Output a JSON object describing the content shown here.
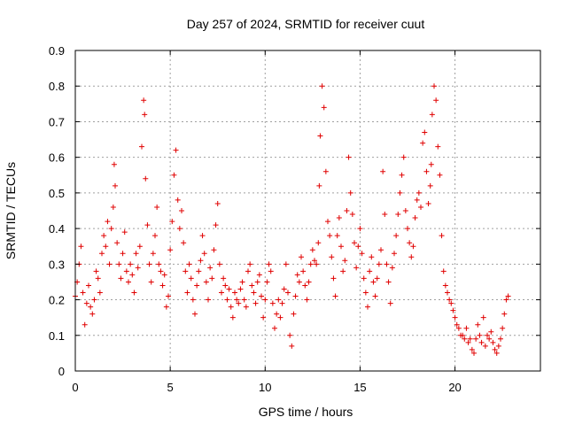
{
  "chart_data": {
    "type": "scatter",
    "title": "Day 257 of 2024, SRMTID for receiver cuut",
    "xlabel": "GPS time / hours",
    "ylabel": "SRMTID / TECUs",
    "xlim": [
      0,
      24.5
    ],
    "ylim": [
      0,
      0.9
    ],
    "xticks": [
      0,
      5,
      10,
      15,
      20
    ],
    "xtick_labels": [
      "0",
      "5",
      "10",
      "15",
      "20"
    ],
    "yticks": [
      0,
      0.1,
      0.2,
      0.3,
      0.4,
      0.5,
      0.6,
      0.7,
      0.8,
      0.9
    ],
    "ytick_labels": [
      "0",
      "0.1",
      "0.2",
      "0.3",
      "0.4",
      "0.5",
      "0.6",
      "0.7",
      "0.8",
      "0.9"
    ],
    "grid": true,
    "marker": "+",
    "color": "#e00000",
    "series": [
      {
        "name": "SRMTID",
        "x": [
          0.0,
          0.1,
          0.2,
          0.3,
          0.4,
          0.5,
          0.6,
          0.7,
          0.8,
          0.9,
          1.0,
          1.1,
          1.2,
          1.3,
          1.4,
          1.5,
          1.6,
          1.7,
          1.8,
          1.9,
          2.0,
          2.05,
          2.1,
          2.2,
          2.3,
          2.4,
          2.5,
          2.6,
          2.7,
          2.8,
          2.9,
          3.0,
          3.1,
          3.2,
          3.3,
          3.4,
          3.5,
          3.6,
          3.65,
          3.7,
          3.8,
          3.9,
          4.0,
          4.1,
          4.2,
          4.3,
          4.4,
          4.5,
          4.6,
          4.7,
          4.8,
          4.9,
          5.0,
          5.1,
          5.2,
          5.3,
          5.4,
          5.5,
          5.6,
          5.7,
          5.8,
          5.9,
          6.0,
          6.1,
          6.2,
          6.3,
          6.4,
          6.5,
          6.6,
          6.7,
          6.8,
          6.9,
          7.0,
          7.1,
          7.2,
          7.3,
          7.4,
          7.5,
          7.6,
          7.7,
          7.8,
          7.9,
          8.0,
          8.1,
          8.2,
          8.3,
          8.4,
          8.5,
          8.6,
          8.7,
          8.8,
          8.9,
          9.0,
          9.1,
          9.2,
          9.3,
          9.4,
          9.5,
          9.6,
          9.7,
          9.8,
          9.9,
          10.0,
          10.1,
          10.2,
          10.3,
          10.4,
          10.5,
          10.6,
          10.7,
          10.8,
          10.9,
          11.0,
          11.1,
          11.2,
          11.3,
          11.4,
          11.5,
          11.6,
          11.7,
          11.8,
          11.9,
          12.0,
          12.1,
          12.2,
          12.3,
          12.4,
          12.5,
          12.6,
          12.7,
          12.8,
          12.85,
          12.9,
          13.0,
          13.1,
          13.2,
          13.3,
          13.4,
          13.5,
          13.6,
          13.7,
          13.8,
          13.9,
          14.0,
          14.1,
          14.2,
          14.3,
          14.4,
          14.5,
          14.6,
          14.7,
          14.8,
          14.9,
          15.0,
          15.1,
          15.2,
          15.3,
          15.4,
          15.5,
          15.6,
          15.7,
          15.8,
          15.9,
          16.0,
          16.1,
          16.2,
          16.3,
          16.4,
          16.5,
          16.6,
          16.7,
          16.8,
          16.9,
          17.0,
          17.1,
          17.2,
          17.3,
          17.4,
          17.5,
          17.6,
          17.7,
          17.8,
          17.9,
          18.0,
          18.1,
          18.2,
          18.3,
          18.4,
          18.5,
          18.6,
          18.7,
          18.75,
          18.8,
          18.9,
          19.0,
          19.1,
          19.2,
          19.3,
          19.4,
          19.5,
          19.6,
          19.7,
          19.8,
          19.9,
          20.0,
          20.1,
          20.2,
          20.3,
          20.4,
          20.5,
          20.6,
          20.7,
          20.8,
          20.9,
          21.0,
          21.1,
          21.2,
          21.3,
          21.4,
          21.5,
          21.6,
          21.7,
          21.8,
          21.9,
          22.0,
          22.1,
          22.2,
          22.3,
          22.4,
          22.5,
          22.6,
          22.7,
          22.8
        ],
        "y": [
          0.21,
          0.25,
          0.3,
          0.35,
          0.22,
          0.13,
          0.19,
          0.24,
          0.18,
          0.16,
          0.2,
          0.28,
          0.26,
          0.22,
          0.33,
          0.38,
          0.35,
          0.42,
          0.3,
          0.4,
          0.46,
          0.58,
          0.52,
          0.36,
          0.3,
          0.26,
          0.33,
          0.39,
          0.28,
          0.25,
          0.3,
          0.27,
          0.22,
          0.33,
          0.29,
          0.35,
          0.63,
          0.76,
          0.72,
          0.54,
          0.41,
          0.3,
          0.25,
          0.33,
          0.38,
          0.46,
          0.3,
          0.28,
          0.24,
          0.27,
          0.18,
          0.21,
          0.34,
          0.42,
          0.55,
          0.62,
          0.48,
          0.4,
          0.45,
          0.36,
          0.28,
          0.22,
          0.3,
          0.26,
          0.2,
          0.16,
          0.24,
          0.28,
          0.31,
          0.38,
          0.33,
          0.25,
          0.2,
          0.29,
          0.26,
          0.34,
          0.41,
          0.47,
          0.3,
          0.22,
          0.26,
          0.24,
          0.2,
          0.23,
          0.18,
          0.15,
          0.22,
          0.2,
          0.19,
          0.23,
          0.25,
          0.2,
          0.18,
          0.28,
          0.3,
          0.24,
          0.22,
          0.19,
          0.25,
          0.27,
          0.21,
          0.15,
          0.2,
          0.25,
          0.3,
          0.28,
          0.19,
          0.12,
          0.16,
          0.2,
          0.15,
          0.19,
          0.23,
          0.3,
          0.22,
          0.1,
          0.07,
          0.16,
          0.21,
          0.27,
          0.25,
          0.32,
          0.28,
          0.24,
          0.2,
          0.25,
          0.3,
          0.34,
          0.31,
          0.3,
          0.36,
          0.52,
          0.66,
          0.8,
          0.74,
          0.56,
          0.42,
          0.38,
          0.32,
          0.26,
          0.21,
          0.38,
          0.43,
          0.35,
          0.28,
          0.31,
          0.45,
          0.6,
          0.5,
          0.44,
          0.36,
          0.29,
          0.35,
          0.4,
          0.33,
          0.26,
          0.22,
          0.18,
          0.28,
          0.32,
          0.25,
          0.21,
          0.26,
          0.3,
          0.34,
          0.56,
          0.44,
          0.3,
          0.25,
          0.19,
          0.29,
          0.33,
          0.38,
          0.44,
          0.5,
          0.55,
          0.6,
          0.45,
          0.4,
          0.36,
          0.32,
          0.35,
          0.43,
          0.48,
          0.5,
          0.46,
          0.64,
          0.67,
          0.56,
          0.47,
          0.52,
          0.58,
          0.72,
          0.8,
          0.76,
          0.63,
          0.55,
          0.38,
          0.28,
          0.24,
          0.22,
          0.2,
          0.19,
          0.17,
          0.15,
          0.13,
          0.12,
          0.1,
          0.1,
          0.09,
          0.12,
          0.08,
          0.09,
          0.06,
          0.05,
          0.09,
          0.13,
          0.1,
          0.08,
          0.15,
          0.07,
          0.1,
          0.09,
          0.11,
          0.08,
          0.06,
          0.05,
          0.07,
          0.09,
          0.12,
          0.16,
          0.2,
          0.21
        ]
      }
    ]
  }
}
